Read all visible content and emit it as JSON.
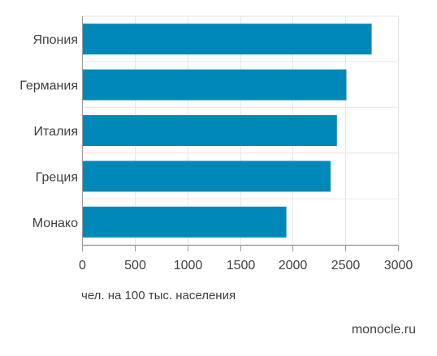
{
  "chart_data": {
    "type": "bar",
    "orientation": "horizontal",
    "categories": [
      "Япония",
      "Германия",
      "Италия",
      "Греция",
      "Монако"
    ],
    "values": [
      2750,
      2510,
      2420,
      2360,
      1940
    ],
    "xlim": [
      0,
      3000
    ],
    "x_ticks": [
      "0",
      "500",
      "1000",
      "1500",
      "2000",
      "2500",
      "3000"
    ],
    "xlabel": "чел. на 100 тыс. населения",
    "grid": true,
    "bar_color": "#0088b9"
  },
  "footer": {
    "source": "monocle.ru"
  },
  "colors": {
    "grid": "#e6e6e6",
    "axis": "#999999",
    "bar": "#0088b9"
  }
}
